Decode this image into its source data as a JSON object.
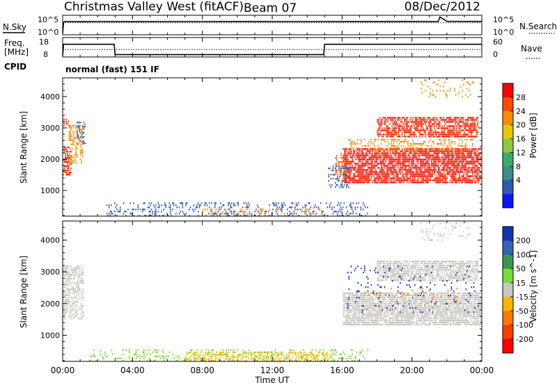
{
  "header": {
    "station": "Christmas Valley West (fitACF)",
    "beam": "Beam 07",
    "date": "08/Dec/2012"
  },
  "nsky_panel": {
    "left_label": "N.Sky",
    "right_label": "N.Search",
    "left_ticks": [
      "10^5",
      "10^0"
    ],
    "right_ticks": [
      "10^5",
      "10^0"
    ]
  },
  "freq_panel": {
    "left_label_1": "Freq.",
    "left_label_2": "[MHz]",
    "right_label": "Nave",
    "left_ticks": [
      "18",
      "8"
    ],
    "right_ticks": [
      "60",
      "0"
    ],
    "cpid_label": "CPID",
    "mode_label": "normal (fast) 151 IF"
  },
  "chart_data": [
    {
      "type": "line",
      "title": "N.Sky / N.Search",
      "xlabel": "Time UT",
      "x_unit": "hours UT",
      "series": [
        {
          "name": "N.Sky",
          "x": [
            0,
            0.05,
            0.1,
            1,
            2,
            4,
            6,
            8,
            10,
            12,
            14,
            16,
            18,
            20,
            21.5,
            21.6,
            22,
            24
          ],
          "values": [
            1,
            2000,
            3500,
            3200,
            3400,
            3300,
            3500,
            3400,
            3600,
            3500,
            3400,
            3700,
            3600,
            3800,
            3500,
            80000,
            4000,
            3800
          ]
        },
        {
          "name": "N.Search",
          "x": [
            0,
            24
          ],
          "values": [
            1500,
            1500
          ]
        }
      ],
      "ylim": [
        1,
        100000
      ],
      "yscale": "log"
    },
    {
      "type": "line",
      "title": "Freq. / Nave",
      "x_unit": "hours UT",
      "series": [
        {
          "name": "Freq. [MHz]",
          "x": [
            0,
            0.05,
            2.95,
            3.0,
            14.95,
            15.0,
            24
          ],
          "values": [
            8,
            14.8,
            14.8,
            8.6,
            8.6,
            14.8,
            14.8
          ]
        },
        {
          "name": "Nave",
          "x": [
            0,
            24
          ],
          "values": [
            22,
            22
          ]
        }
      ],
      "ylim": [
        8,
        18
      ],
      "y2lim": [
        0,
        60
      ]
    },
    {
      "type": "heatmap",
      "title": "Power [dB]",
      "xlabel": "Time UT",
      "ylabel": "Slant Range [km]",
      "xlim": [
        0,
        24
      ],
      "ylim": [
        180,
        4600
      ],
      "xticks": [
        "00:00",
        "04:00",
        "08:00",
        "12:00",
        "16:00",
        "20:00",
        "00:00"
      ],
      "yticks": [
        1000,
        2000,
        3000,
        4000
      ],
      "colorbar": {
        "label": "Power [dB]",
        "ticks": [
          "28",
          "24",
          "20",
          "16",
          "12",
          "8",
          "4"
        ],
        "colors": [
          "#ff0000",
          "#ff4a00",
          "#ff8c00",
          "#e6c800",
          "#8ccc3c",
          "#3caa6e",
          "#3c8c8c",
          "#325ab4",
          "#0a14ff"
        ]
      },
      "regions": [
        {
          "name": "early-patch-a",
          "t": [
            0.0,
            0.45
          ],
          "r": [
            1500,
            2400
          ],
          "color": "#ff2000",
          "density": 0.6
        },
        {
          "name": "early-patch-b",
          "t": [
            0.05,
            0.35
          ],
          "r": [
            3000,
            3300
          ],
          "color": "#ff3000",
          "density": 0.5
        },
        {
          "name": "early-patch-c",
          "t": [
            0.35,
            1.15
          ],
          "r": [
            1900,
            3100
          ],
          "color": "#ff8c00",
          "density": 0.45
        },
        {
          "name": "early-patch-d",
          "t": [
            0.8,
            1.25
          ],
          "r": [
            2500,
            3200
          ],
          "color": "#3c6eb4",
          "density": 0.4
        },
        {
          "name": "near-range",
          "t": [
            2.5,
            17.5
          ],
          "r": [
            220,
            620
          ],
          "color": "#325ab4",
          "density": 0.22
        },
        {
          "name": "near-range-hot",
          "t": [
            8,
            15
          ],
          "r": [
            220,
            420
          ],
          "color": "#ff8c00",
          "density": 0.15
        },
        {
          "name": "evening-main",
          "t": [
            16.05,
            23.9
          ],
          "r": [
            1250,
            2350
          ],
          "color": "#ff1400",
          "density": 0.75
        },
        {
          "name": "evening-onset",
          "t": [
            15.6,
            16.3
          ],
          "r": [
            1300,
            2200
          ],
          "color": "#ff6000",
          "density": 0.45
        },
        {
          "name": "evening-upper-a",
          "t": [
            18.0,
            23.8
          ],
          "r": [
            2700,
            3350
          ],
          "color": "#ff2000",
          "density": 0.65
        },
        {
          "name": "evening-mid",
          "t": [
            16.3,
            23.5
          ],
          "r": [
            2300,
            2650
          ],
          "color": "#ff8c00",
          "density": 0.3
        },
        {
          "name": "evening-edge",
          "t": [
            15.2,
            16.4
          ],
          "r": [
            1100,
            1800
          ],
          "color": "#325ab4",
          "density": 0.25
        },
        {
          "name": "high-scatter",
          "t": [
            20.5,
            23.5
          ],
          "r": [
            4000,
            4550
          ],
          "color": "#ff8c00",
          "density": 0.12
        }
      ]
    },
    {
      "type": "heatmap",
      "title": "Velocity [m s^-1]",
      "xlabel": "Time UT",
      "ylabel": "Slant Range [km]",
      "xlim": [
        0,
        24
      ],
      "ylim": [
        180,
        4600
      ],
      "xticks": [
        "00:00",
        "04:00",
        "08:00",
        "12:00",
        "16:00",
        "20:00",
        "00:00"
      ],
      "yticks": [
        1000,
        2000,
        3000,
        4000
      ],
      "colorbar": {
        "label": "Velocity [m s^-1]",
        "ticks": [
          "200",
          "100",
          "50",
          "15",
          "-15",
          "-50",
          "-100",
          "-200"
        ],
        "colors": [
          "#1432b4",
          "#3264b4",
          "#3c9650",
          "#78dc3c",
          "#c8c8c0",
          "#ffb400",
          "#ff7800",
          "#ff3c00",
          "#ff0000"
        ]
      },
      "regions": [
        {
          "name": "early-gray",
          "t": [
            0.0,
            1.2
          ],
          "r": [
            1500,
            3200
          ],
          "color": "#c8c8c0",
          "density": 0.55
        },
        {
          "name": "near-range-green",
          "t": [
            1.5,
            17.5
          ],
          "r": [
            200,
            560
          ],
          "color": "#78dc3c",
          "density": 0.2
        },
        {
          "name": "near-range-orange",
          "t": [
            7,
            15.5
          ],
          "r": [
            200,
            480
          ],
          "color": "#ffb400",
          "density": 0.35
        },
        {
          "name": "evening-main-gray",
          "t": [
            16.05,
            23.9
          ],
          "r": [
            1300,
            2350
          ],
          "color": "#c8c8c0",
          "density": 0.8
        },
        {
          "name": "evening-upper-gray",
          "t": [
            18.0,
            23.8
          ],
          "r": [
            2700,
            3350
          ],
          "color": "#c8c8c0",
          "density": 0.7
        },
        {
          "name": "evening-blue",
          "t": [
            16.3,
            23.8
          ],
          "r": [
            1700,
            3200
          ],
          "color": "#1432b4",
          "density": 0.05
        },
        {
          "name": "evening-orange",
          "t": [
            17,
            23
          ],
          "r": [
            1800,
            2500
          ],
          "color": "#ff7800",
          "density": 0.05
        },
        {
          "name": "high-scatter-v",
          "t": [
            20.5,
            23.5
          ],
          "r": [
            4000,
            4550
          ],
          "color": "#c8c8c0",
          "density": 0.12
        }
      ]
    }
  ]
}
